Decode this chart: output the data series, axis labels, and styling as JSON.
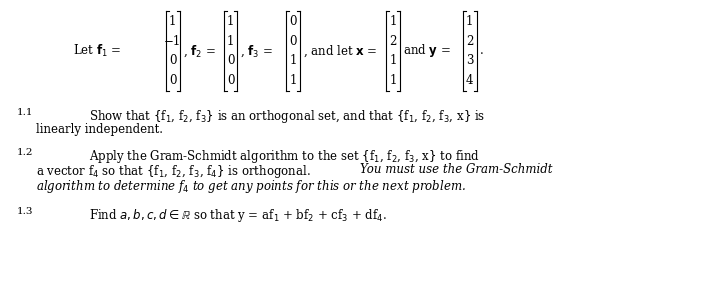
{
  "bg_color": "#ffffff",
  "figsize": [
    7.27,
    2.86
  ],
  "dpi": 100,
  "vectors": {
    "f1": [
      "1",
      "−1",
      "0",
      "0"
    ],
    "f2": [
      "1",
      "1",
      "0",
      "0"
    ],
    "f3": [
      "0",
      "0",
      "1",
      "1"
    ],
    "x": [
      "1",
      "2",
      "1",
      "1"
    ],
    "y": [
      "1",
      "2",
      "3",
      "4"
    ]
  }
}
